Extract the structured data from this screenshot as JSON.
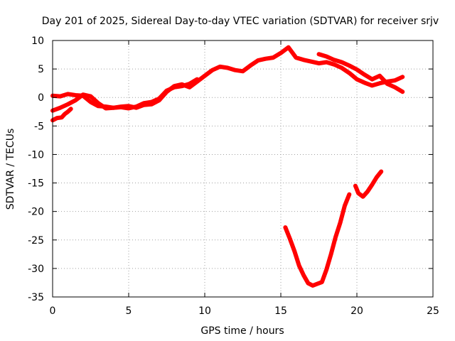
{
  "chart_data": {
    "type": "line",
    "title": "Day 201 of 2025, Sidereal Day-to-day VTEC variation (SDTVAR) for receiver srjv",
    "xlabel": "GPS time / hours",
    "ylabel": "SDTVAR / TECUs",
    "xlim": [
      0,
      25
    ],
    "ylim": [
      -35,
      10
    ],
    "xticks": [
      0,
      5,
      10,
      15,
      20,
      25
    ],
    "yticks": [
      -35,
      -30,
      -25,
      -20,
      -15,
      -10,
      -5,
      0,
      5,
      10
    ],
    "grid": true,
    "color": "#ff0000",
    "series": [
      {
        "name": "track-main-upper",
        "points": [
          [
            0,
            0.3
          ],
          [
            0.5,
            0.2
          ],
          [
            1,
            0.6
          ],
          [
            1.5,
            0.4
          ],
          [
            2,
            0.3
          ],
          [
            2.5,
            -0.8
          ],
          [
            3,
            -1.5
          ],
          [
            3.5,
            -1.6
          ],
          [
            4,
            -1.8
          ],
          [
            4.5,
            -1.6
          ],
          [
            5,
            -1.5
          ],
          [
            5.5,
            -1.8
          ],
          [
            6,
            -1.3
          ],
          [
            6.5,
            -1.2
          ],
          [
            7,
            -0.5
          ],
          [
            7.5,
            1.0
          ],
          [
            8,
            2.0
          ],
          [
            8.5,
            2.3
          ],
          [
            9,
            1.8
          ],
          [
            9.5,
            2.8
          ],
          [
            10,
            3.8
          ],
          [
            10.5,
            4.8
          ],
          [
            11,
            5.4
          ],
          [
            11.5,
            5.2
          ],
          [
            12,
            4.8
          ],
          [
            12.5,
            4.6
          ],
          [
            13,
            5.6
          ],
          [
            13.5,
            6.5
          ],
          [
            14,
            6.8
          ],
          [
            14.5,
            7.0
          ],
          [
            15,
            7.8
          ],
          [
            15.5,
            8.8
          ],
          [
            16,
            7.0
          ],
          [
            16.5,
            6.6
          ],
          [
            17,
            6.3
          ],
          [
            17.5,
            6.0
          ],
          [
            18,
            6.2
          ],
          [
            18.5,
            5.8
          ],
          [
            19,
            5.2
          ],
          [
            19.5,
            4.3
          ],
          [
            20,
            3.2
          ],
          [
            20.5,
            2.6
          ],
          [
            21,
            2.1
          ],
          [
            21.5,
            2.5
          ],
          [
            22,
            2.8
          ],
          [
            22.5,
            3.0
          ],
          [
            23,
            3.6
          ]
        ]
      },
      {
        "name": "track-main-lower",
        "points": [
          [
            0,
            -2.3
          ],
          [
            0.5,
            -1.8
          ],
          [
            1,
            -1.2
          ],
          [
            1.5,
            -0.5
          ],
          [
            2,
            0.5
          ],
          [
            2.5,
            0.2
          ],
          [
            3,
            -1.0
          ],
          [
            3.5,
            -1.9
          ],
          [
            4,
            -1.8
          ],
          [
            4.5,
            -1.7
          ],
          [
            5,
            -1.9
          ],
          [
            5.5,
            -1.6
          ],
          [
            6,
            -1.0
          ],
          [
            6.5,
            -0.8
          ],
          [
            7,
            -0.2
          ],
          [
            7.5,
            1.2
          ],
          [
            8,
            1.8
          ],
          [
            8.5,
            2.0
          ],
          [
            9,
            2.4
          ],
          [
            9.5,
            3.2
          ]
        ]
      },
      {
        "name": "track-early-segment",
        "points": [
          [
            0,
            -4.0
          ],
          [
            0.3,
            -3.6
          ],
          [
            0.6,
            -3.5
          ],
          [
            0.8,
            -2.9
          ],
          [
            1.0,
            -2.5
          ],
          [
            1.2,
            -2.0
          ]
        ]
      },
      {
        "name": "track-late-branch",
        "points": [
          [
            17.5,
            7.6
          ],
          [
            18,
            7.2
          ],
          [
            18.5,
            6.6
          ],
          [
            19,
            6.2
          ],
          [
            19.5,
            5.6
          ],
          [
            20,
            4.9
          ],
          [
            20.5,
            4.0
          ],
          [
            21,
            3.2
          ],
          [
            21.5,
            3.8
          ],
          [
            22,
            2.4
          ],
          [
            22.5,
            1.8
          ],
          [
            23,
            1.0
          ]
        ]
      },
      {
        "name": "track-dip",
        "points": [
          [
            15.3,
            -22.8
          ],
          [
            15.6,
            -24.8
          ],
          [
            15.9,
            -27.0
          ],
          [
            16.2,
            -29.5
          ],
          [
            16.5,
            -31.2
          ],
          [
            16.8,
            -32.6
          ],
          [
            17.1,
            -33.0
          ],
          [
            17.4,
            -32.7
          ],
          [
            17.7,
            -32.4
          ],
          [
            18.0,
            -30.2
          ],
          [
            18.3,
            -27.5
          ],
          [
            18.6,
            -24.5
          ],
          [
            18.9,
            -22.0
          ],
          [
            19.2,
            -19.0
          ],
          [
            19.5,
            -17.0
          ]
        ]
      },
      {
        "name": "track-late-dip",
        "points": [
          [
            19.9,
            -15.5
          ],
          [
            20.1,
            -16.8
          ],
          [
            20.4,
            -17.4
          ],
          [
            20.7,
            -16.5
          ],
          [
            21.0,
            -15.3
          ],
          [
            21.3,
            -14.0
          ],
          [
            21.6,
            -13.0
          ]
        ]
      }
    ]
  }
}
